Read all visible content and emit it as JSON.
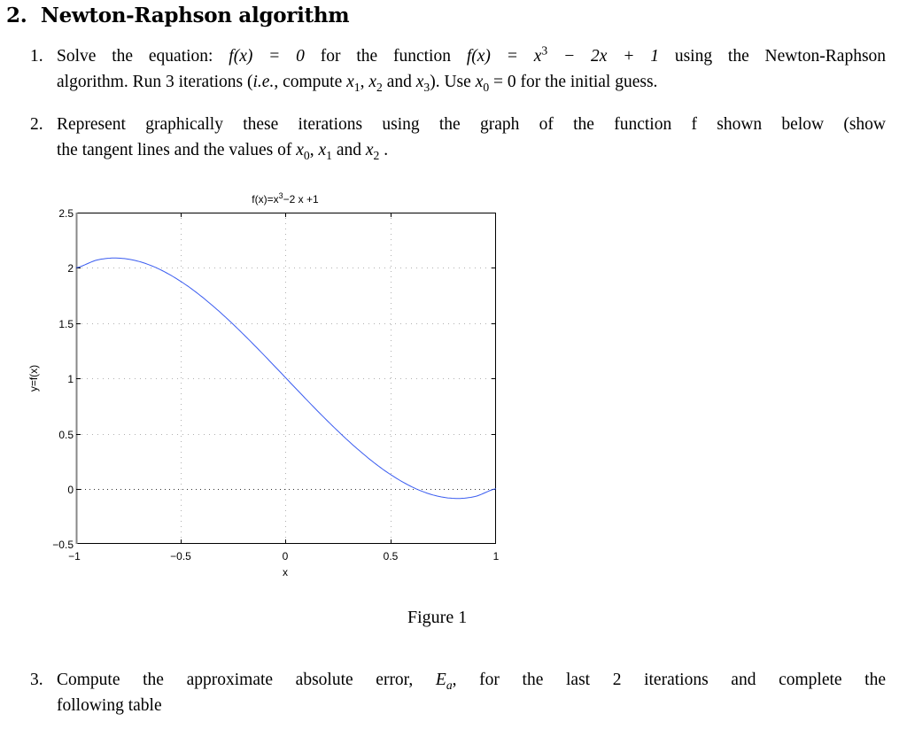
{
  "section": {
    "number": "2.",
    "title": "Newton-Raphson algorithm"
  },
  "items": [
    {
      "number": "1.",
      "line1": {
        "pre": "Solve the equation: ",
        "eq1": "f(x) = 0",
        "mid": " for the function ",
        "eq2_lhs": "f(x) = x",
        "eq2_sup": "3",
        "eq2_rhs": " − 2x + 1",
        "post": " using the Newton-Raphson"
      },
      "line2": {
        "pre": "algorithm. Run 3 iterations (",
        "ie": "i.e.",
        "mid": ", compute ",
        "x1": "x",
        "x1_sub": "1",
        "sep1": ", ",
        "x2": "x",
        "x2_sub": "2",
        "and": " and ",
        "x3": "x",
        "x3_sub": "3",
        "post1": "). Use ",
        "x0": "x",
        "x0_sub": "0",
        "post2": " = 0 for the initial guess."
      }
    },
    {
      "number": "2.",
      "line1": "Represent graphically these iterations using the graph of the function f shown below (show",
      "line2": {
        "pre": "the tangent lines and the values of ",
        "x0": "x",
        "x0_sub": "0",
        "sep": ", ",
        "x1": "x",
        "x1_sub": "1",
        "and": " and ",
        "x2": "x",
        "x2_sub": "2",
        "post": " ."
      }
    },
    {
      "number": "3.",
      "line1": {
        "pre": "Compute the approximate absolute error, ",
        "ea": "E",
        "ea_sub": "a",
        "post": ", for the last 2 iterations and complete the"
      },
      "line2": "following table"
    }
  ],
  "figure": {
    "caption": "Figure 1"
  },
  "chart_data": {
    "type": "line",
    "title": "f(x)=x^3−2 x +1",
    "title_parts": {
      "base": "f(x)=x",
      "sup": "3",
      "rest": "−2 x +1"
    },
    "xlabel": "x",
    "ylabel": "y=f(x)",
    "xlim": [
      -1,
      1
    ],
    "ylim": [
      -0.5,
      2.5
    ],
    "xticks": [
      -1,
      -0.5,
      0,
      0.5,
      1
    ],
    "xtick_labels": [
      "−1",
      "−0.5",
      "0",
      "0.5",
      "1"
    ],
    "yticks": [
      -0.5,
      0,
      0.5,
      1,
      1.5,
      2,
      2.5
    ],
    "ytick_labels": [
      "−0.5",
      "0",
      "0.5",
      "1",
      "1.5",
      "2",
      "2.5"
    ],
    "grid": true,
    "series": [
      {
        "name": "f(x)",
        "color": "#3a5cf0",
        "x": [
          -1,
          -0.9,
          -0.8,
          -0.7,
          -0.6,
          -0.5,
          -0.4,
          -0.3,
          -0.2,
          -0.1,
          0,
          0.1,
          0.2,
          0.3,
          0.4,
          0.5,
          0.6,
          0.7,
          0.8,
          0.9,
          1
        ],
        "y": [
          2,
          2.071,
          2.088,
          2.057,
          1.984,
          1.875,
          1.736,
          1.573,
          1.392,
          1.199,
          1,
          0.801,
          0.608,
          0.427,
          0.264,
          0.125,
          0.016,
          -0.057,
          -0.088,
          -0.071,
          0
        ]
      }
    ]
  }
}
